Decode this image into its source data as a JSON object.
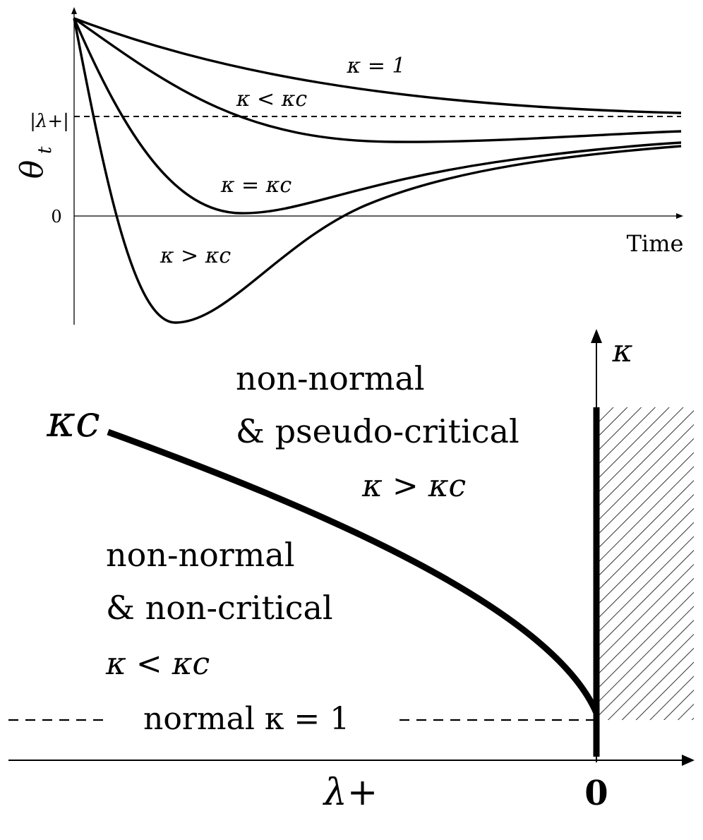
{
  "top_plot": {
    "y_axis_label": "θ",
    "y_axis_label_sub": "t",
    "x_axis_label": "Time",
    "tick_zero": "0",
    "tick_lambda": "|λ+|",
    "curve_labels": {
      "k1": "κ = 1",
      "k_less": "κ < κc",
      "k_equal": "κ = κc",
      "k_greater": "κ > κc"
    }
  },
  "bottom_diagram": {
    "kappa_axis": "κ",
    "kappa_c_label": "κc",
    "x_axis": "λ+",
    "zero_tick": "0",
    "region_pseudo": {
      "line1": "non-normal",
      "line2": "& pseudo-critical",
      "line3": "κ > κc"
    },
    "region_noncritical": {
      "line1": "non-normal",
      "line2": "& non-critical",
      "line3": "κ < κc"
    },
    "normal_label": "normal κ = 1"
  }
}
